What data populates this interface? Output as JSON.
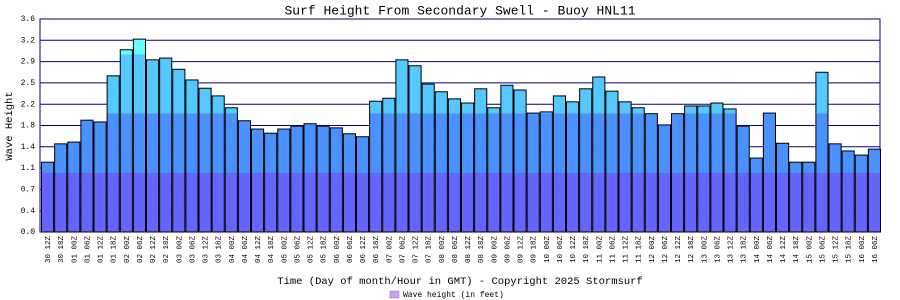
{
  "chart_data": {
    "type": "bar",
    "title": "Surf Height From Secondary Swell - Buoy HNL11",
    "x_label": "Time (Day of month/Hour in GMT) - Copyright 2025 Stormsurf",
    "y_label": "Wave Height",
    "categories": [
      "30 12Z",
      "30 18Z",
      "01 00Z",
      "01 06Z",
      "01 12Z",
      "01 18Z",
      "02 00Z",
      "02 06Z",
      "02 12Z",
      "02 18Z",
      "03 00Z",
      "03 06Z",
      "03 12Z",
      "03 18Z",
      "04 00Z",
      "04 06Z",
      "04 12Z",
      "04 18Z",
      "05 00Z",
      "05 06Z",
      "05 12Z",
      "05 18Z",
      "06 00Z",
      "06 06Z",
      "06 12Z",
      "06 18Z",
      "07 00Z",
      "07 06Z",
      "07 12Z",
      "07 18Z",
      "08 00Z",
      "08 06Z",
      "08 12Z",
      "08 18Z",
      "09 00Z",
      "09 06Z",
      "09 12Z",
      "09 18Z",
      "10 00Z",
      "10 06Z",
      "10 12Z",
      "10 18Z",
      "11 00Z",
      "11 06Z",
      "11 12Z",
      "11 18Z",
      "12 00Z",
      "12 06Z",
      "12 12Z",
      "12 18Z",
      "13 00Z",
      "13 06Z",
      "13 12Z",
      "13 18Z",
      "14 00Z",
      "14 06Z",
      "14 12Z",
      "14 18Z",
      "15 00Z",
      "15 06Z",
      "15 12Z",
      "15 18Z",
      "16 00Z",
      "16 06Z"
    ],
    "series": [
      {
        "name": "Wave height (in feet)",
        "color": "#c8a0ff",
        "values": [
          1.18,
          1.49,
          1.52,
          1.89,
          1.86,
          2.64,
          3.08,
          3.26,
          2.91,
          2.94,
          2.75,
          2.57,
          2.43,
          2.3,
          2.1,
          1.88,
          1.74,
          1.67,
          1.74,
          1.79,
          1.83,
          1.79,
          1.76,
          1.66,
          1.61,
          2.21,
          2.26,
          2.91,
          2.81,
          2.5,
          2.37,
          2.25,
          2.18,
          2.42,
          2.1,
          2.48,
          2.4,
          2.01,
          2.03,
          2.3,
          2.2,
          2.42,
          2.62,
          2.38,
          2.2,
          2.1,
          2.0,
          1.81,
          2.0,
          2.13,
          2.13,
          2.18,
          2.08,
          1.79,
          1.25,
          2.01,
          1.5,
          1.18,
          1.18,
          2.7,
          1.49,
          1.37,
          1.3,
          1.4
        ]
      }
    ],
    "color_bands": [
      {
        "from": 0,
        "color": "#6464ff"
      },
      {
        "from": 1,
        "color": "#4a90ff"
      },
      {
        "from": 2,
        "color": "#55c8ff"
      },
      {
        "from": 3,
        "color": "#66ffff"
      }
    ],
    "ylim": [
      0,
      3.6
    ],
    "yticks": [
      {
        "value": 0,
        "label": "0.0"
      },
      {
        "value": 0.36,
        "label": "0.4"
      },
      {
        "value": 0.72,
        "label": "0.7"
      },
      {
        "value": 1.08,
        "label": "1.1"
      },
      {
        "value": 1.44,
        "label": "1.4"
      },
      {
        "value": 1.8,
        "label": "1.8"
      },
      {
        "value": 2.16,
        "label": "2.2"
      },
      {
        "value": 2.52,
        "label": "2.5"
      },
      {
        "value": 2.88,
        "label": "2.9"
      },
      {
        "value": 3.24,
        "label": "3.2"
      },
      {
        "value": 3.6,
        "label": "3.6"
      }
    ],
    "grid": true
  }
}
